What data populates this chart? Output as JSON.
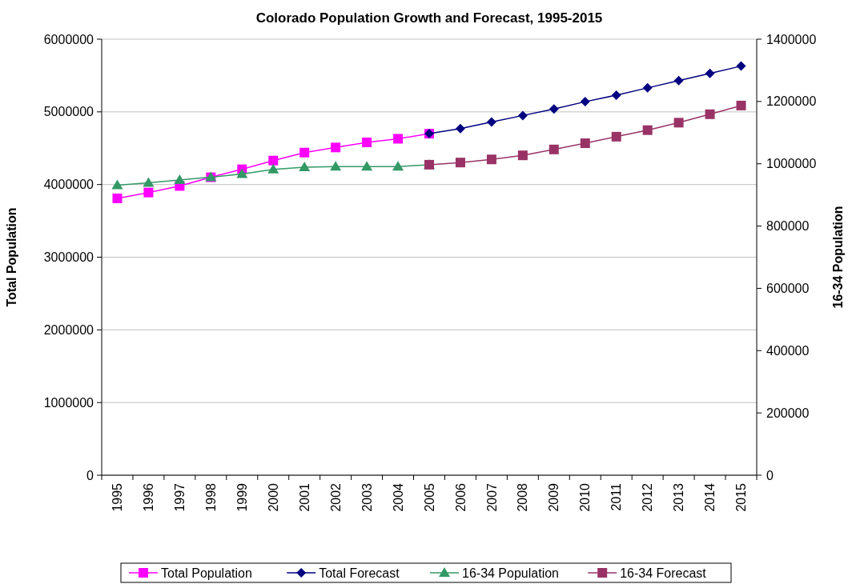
{
  "chart_data": {
    "type": "line",
    "title": "Colorado Population Growth and Forecast, 1995-2015",
    "ylabel": "Total Population",
    "y2label": "16-34 Population",
    "categories": [
      "1995",
      "1996",
      "1997",
      "1998",
      "1999",
      "2000",
      "2001",
      "2002",
      "2003",
      "2004",
      "2005",
      "2006",
      "2007",
      "2008",
      "2009",
      "2010",
      "2011",
      "2012",
      "2013",
      "2014",
      "2015"
    ],
    "series": [
      {
        "name": "Total Population",
        "color": "#ff00ff",
        "marker": "square",
        "values": [
          3810000,
          3890000,
          3980000,
          4100000,
          4210000,
          4330000,
          4440000,
          4510000,
          4580000,
          4630000,
          4700000,
          null,
          null,
          null,
          null,
          null,
          null,
          null,
          null,
          null,
          null
        ]
      },
      {
        "name": "Total Forecast",
        "color": "#000080",
        "marker": "diamond",
        "values": [
          null,
          null,
          null,
          null,
          null,
          null,
          null,
          null,
          null,
          null,
          4700000,
          4770000,
          4860000,
          4950000,
          5040000,
          5140000,
          5230000,
          5330000,
          5430000,
          5530000,
          5630000
        ]
      },
      {
        "name": "16-34 Population",
        "color": "#339966",
        "marker": "triangle",
        "axis": "y2",
        "values": [
          931000,
          939000,
          948000,
          957000,
          967000,
          982000,
          989000,
          991000,
          991000,
          991000,
          997000,
          null,
          null,
          null,
          null,
          null,
          null,
          null,
          null,
          null,
          null
        ]
      },
      {
        "name": "16-34 Forecast",
        "color": "#993366",
        "marker": "square",
        "axis": "y2",
        "values": [
          null,
          null,
          null,
          null,
          null,
          null,
          null,
          null,
          null,
          null,
          997000,
          1004000,
          1014000,
          1027000,
          1046000,
          1066000,
          1087000,
          1108000,
          1132000,
          1159000,
          1187000
        ]
      }
    ],
    "ylim": [
      0,
      6000000
    ],
    "yticks": [
      0,
      1000000,
      2000000,
      3000000,
      4000000,
      5000000,
      6000000
    ],
    "y2lim": [
      0,
      1400000
    ],
    "y2ticks": [
      0,
      200000,
      400000,
      600000,
      800000,
      1000000,
      1200000,
      1400000
    ],
    "grid": "y",
    "legend": "bottom",
    "line_style": "solid"
  }
}
